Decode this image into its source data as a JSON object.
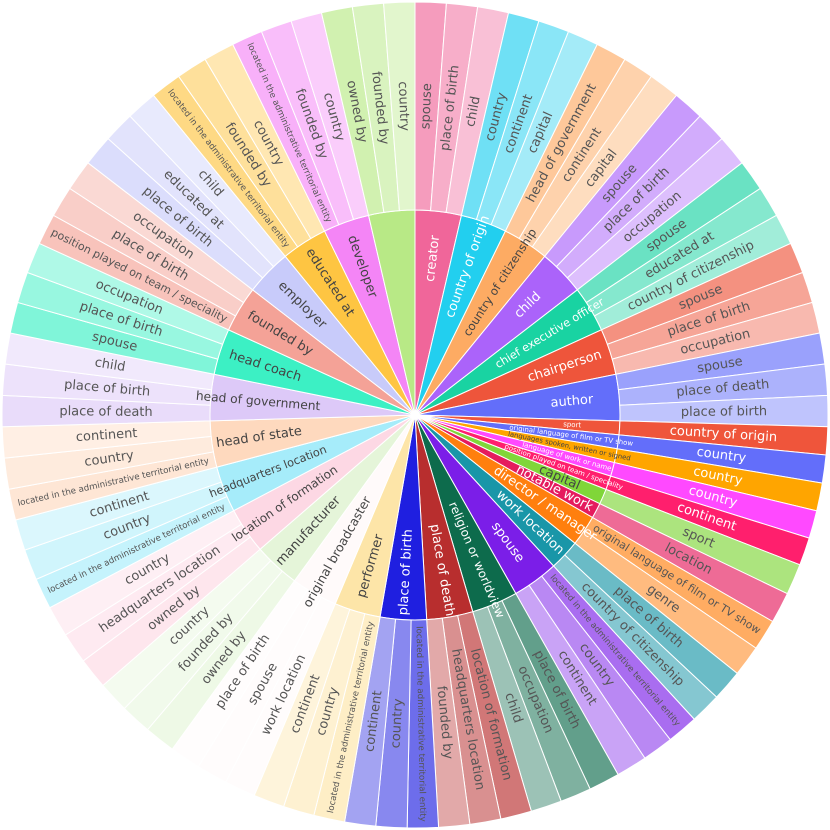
{
  "chart_data": {
    "type": "sunburst",
    "title": "",
    "start_angle_deg": 0,
    "inner": [
      {
        "label": "creator",
        "color": "#f0669a",
        "children": [
          {
            "label": "spouse"
          },
          {
            "label": "place of birth"
          },
          {
            "label": "child"
          }
        ]
      },
      {
        "label": "country of origin",
        "color": "#22cfef",
        "children": [
          {
            "label": "country"
          },
          {
            "label": "continent"
          },
          {
            "label": "capital"
          }
        ]
      },
      {
        "label": "country of citizenship",
        "color": "#fdab63",
        "children": [
          {
            "label": "head of government"
          },
          {
            "label": "continent"
          },
          {
            "label": "capital"
          }
        ]
      },
      {
        "label": "child",
        "color": "#ab63fa",
        "children": [
          {
            "label": "spouse"
          },
          {
            "label": "place of birth"
          },
          {
            "label": "occupation"
          }
        ]
      },
      {
        "label": "chief executive officer",
        "color": "#19d3a2",
        "children": [
          {
            "label": "spouse"
          },
          {
            "label": "educated at"
          },
          {
            "label": "country of citizenship"
          }
        ]
      },
      {
        "label": "chairperson",
        "color": "#ee553b",
        "children": [
          {
            "label": "spouse"
          },
          {
            "label": "place of birth"
          },
          {
            "label": "occupation"
          }
        ]
      },
      {
        "label": "author",
        "color": "#636efa",
        "children": [
          {
            "label": "spouse"
          },
          {
            "label": "place of death"
          },
          {
            "label": "place of birth"
          }
        ]
      },
      {
        "label": "sport",
        "color": "#ef553b",
        "small": true,
        "children": [
          {
            "label": "country of origin"
          }
        ]
      },
      {
        "label": "original language of film or TV show",
        "color": "#636efa",
        "small": true,
        "children": [
          {
            "label": "country"
          }
        ]
      },
      {
        "label": "languages spoken, written or signed",
        "color": "#ffa500",
        "small": true,
        "children": [
          {
            "label": "country"
          }
        ]
      },
      {
        "label": "language of work or name",
        "color": "#ff49ff",
        "small": true,
        "children": [
          {
            "label": "country"
          }
        ]
      },
      {
        "label": "position played on team / speciality",
        "color": "#ff1f6d",
        "small": true,
        "children": [
          {
            "label": "continent"
          }
        ]
      },
      {
        "label": "capital",
        "color": "#80d639",
        "children": [
          {
            "label": "sport"
          }
        ]
      },
      {
        "label": "notable work",
        "color": "#e51b5e",
        "children": [
          {
            "label": "location"
          }
        ]
      },
      {
        "label": "director / manager",
        "color": "#ff7f0e",
        "children": [
          {
            "label": "original language of film or TV show"
          },
          {
            "label": "genre"
          }
        ]
      },
      {
        "label": "work location",
        "color": "#1996a8",
        "children": [
          {
            "label": "place of birth"
          },
          {
            "label": "country of citizenship"
          }
        ]
      },
      {
        "label": "spouse",
        "color": "#7b1ee8",
        "children": [
          {
            "label": "located in the administrative territorial entity"
          },
          {
            "label": "country"
          },
          {
            "label": "continent"
          }
        ]
      },
      {
        "label": "religion or worldview",
        "color": "#0d6b4c",
        "children": [
          {
            "label": "place of birth"
          },
          {
            "label": "occupation"
          },
          {
            "label": "child"
          }
        ]
      },
      {
        "label": "place of death",
        "color": "#b82e2e",
        "children": [
          {
            "label": "location of formation"
          },
          {
            "label": "headquarters location"
          },
          {
            "label": "founded by"
          }
        ]
      },
      {
        "label": "place of birth",
        "color": "#1f1fe0",
        "children": [
          {
            "label": "located in the administrative territorial entity"
          },
          {
            "label": "country"
          },
          {
            "label": "continent"
          }
        ]
      },
      {
        "label": "performer",
        "color": "#fde5a8",
        "children": [
          {
            "label": "located in the administrative territorial entity"
          },
          {
            "label": "country"
          },
          {
            "label": "continent"
          }
        ]
      },
      {
        "label": "original broadcaster",
        "color": "#fffafa",
        "children": [
          {
            "label": "work location"
          },
          {
            "label": "spouse"
          },
          {
            "label": "place of birth"
          }
        ]
      },
      {
        "label": "manufacturer",
        "color": "#e5f5d9",
        "children": [
          {
            "label": "owned by"
          },
          {
            "label": "founded by"
          },
          {
            "label": "country"
          }
        ]
      },
      {
        "label": "location of formation",
        "color": "#fdd8e4",
        "children": [
          {
            "label": "owned by"
          },
          {
            "label": "headquarters location"
          },
          {
            "label": "country"
          }
        ]
      },
      {
        "label": "headquarters location",
        "color": "#a6ecfa",
        "children": [
          {
            "label": "located in the administrative territorial entity"
          },
          {
            "label": "country"
          },
          {
            "label": "continent"
          }
        ]
      },
      {
        "label": "head of state",
        "color": "#fed9be",
        "children": [
          {
            "label": "located in the administrative territorial entity"
          },
          {
            "label": "country"
          },
          {
            "label": "continent"
          }
        ]
      },
      {
        "label": "head of government",
        "color": "#ddc9f8",
        "children": [
          {
            "label": "place of death"
          },
          {
            "label": "place of birth"
          },
          {
            "label": "child"
          }
        ]
      },
      {
        "label": "head coach",
        "color": "#3cf0c4",
        "children": [
          {
            "label": "spouse"
          },
          {
            "label": "place of birth"
          },
          {
            "label": "occupation"
          }
        ]
      },
      {
        "label": "founded by",
        "color": "#f4a297",
        "children": [
          {
            "label": "position played on team / speciality"
          },
          {
            "label": "place of birth"
          },
          {
            "label": "occupation"
          }
        ]
      },
      {
        "label": "employer",
        "color": "#c8cbfa",
        "children": [
          {
            "label": "place of birth"
          },
          {
            "label": "educated at"
          },
          {
            "label": "child"
          }
        ]
      },
      {
        "label": "educated at",
        "color": "#fec542",
        "children": [
          {
            "label": "located in the administrative territorial entity"
          },
          {
            "label": "founded by"
          },
          {
            "label": "country"
          }
        ]
      },
      {
        "label": "developer",
        "color": "#f485f6",
        "children": [
          {
            "label": "located in the administrative territorial entity"
          },
          {
            "label": "founded by"
          },
          {
            "label": "country"
          }
        ]
      },
      {
        "label": "",
        "color": "#b8e986",
        "children": [
          {
            "label": "owned by"
          },
          {
            "label": "founded by"
          },
          {
            "label": "country"
          }
        ]
      }
    ]
  }
}
